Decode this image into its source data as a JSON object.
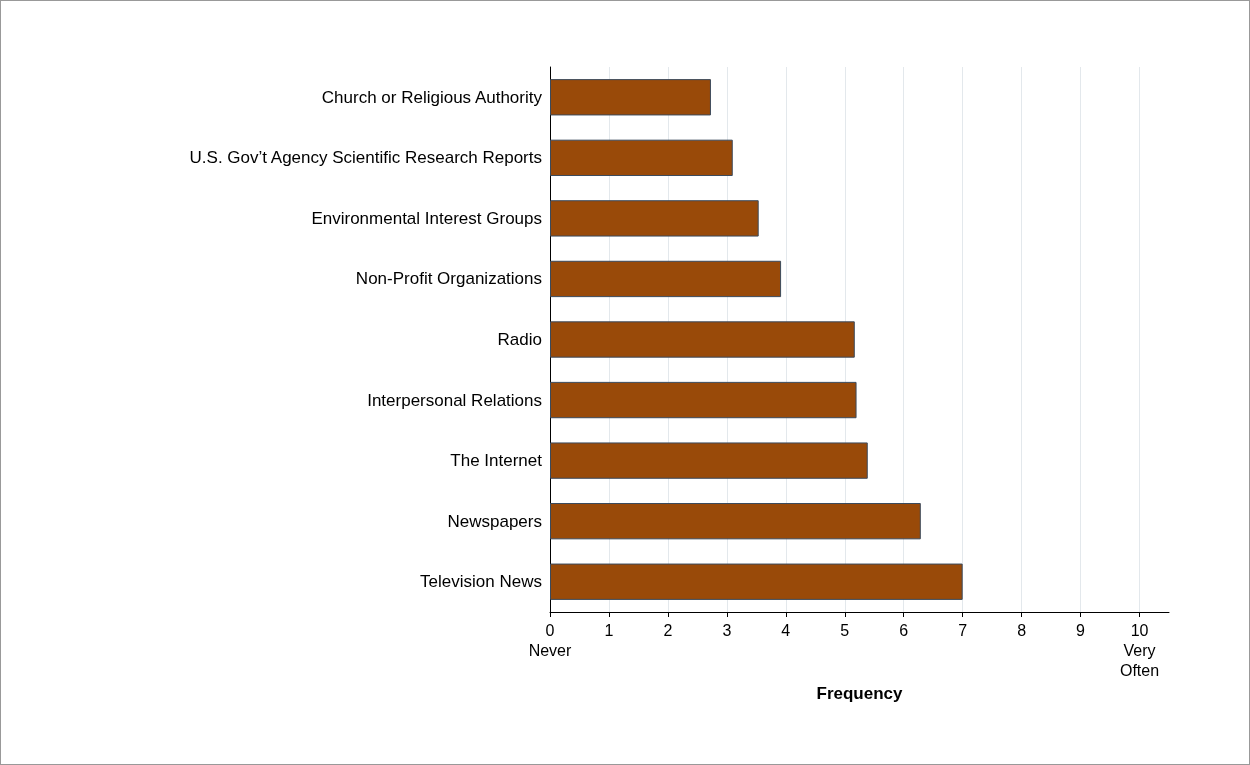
{
  "chart_data": {
    "type": "bar",
    "orientation": "horizontal",
    "xlabel": "Frequency",
    "categories": [
      "Church or Religious Authority",
      "U.S. Gov’t Agency Scientific Research Reports",
      "Environmental Interest Groups",
      "Non-Profit Organizations",
      "Radio",
      "Interpersonal Relations",
      "The Internet",
      "Newspapers",
      "Television News"
    ],
    "values": [
      2.73,
      3.1,
      3.54,
      3.92,
      5.17,
      5.2,
      5.39,
      6.29,
      7.0
    ],
    "color": "#994a09",
    "xlim": [
      0,
      10.5
    ],
    "xticks": [
      {
        "value": 0,
        "label": "0\nNever"
      },
      1,
      2,
      3,
      4,
      5,
      6,
      7,
      8,
      9,
      {
        "value": 10,
        "label": "10\nVery\nOften"
      }
    ],
    "grid": "x"
  }
}
